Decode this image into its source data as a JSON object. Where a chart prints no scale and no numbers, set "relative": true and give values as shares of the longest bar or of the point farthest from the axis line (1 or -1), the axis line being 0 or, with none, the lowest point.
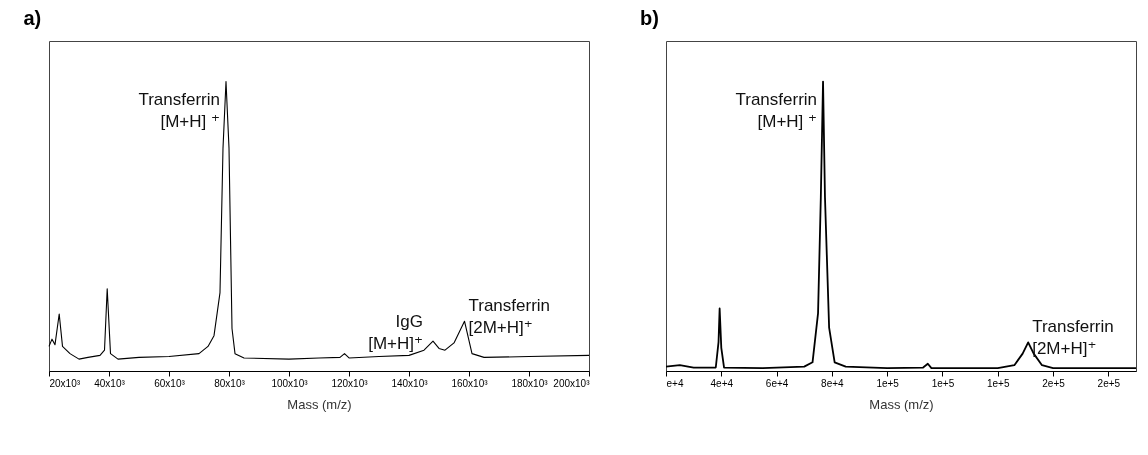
{
  "chart_data": [
    {
      "type": "line",
      "title": "a)",
      "xlabel": "Mass (m/z)",
      "relative": true,
      "color": "#000000",
      "line_style": "solid",
      "grid": false,
      "xlim": [
        20000,
        200000
      ],
      "xticks": [
        {
          "value": 20000,
          "label": "20x10³"
        },
        {
          "value": 40000,
          "label": "40x10³"
        },
        {
          "value": 60000,
          "label": "60x10³"
        },
        {
          "value": 80000,
          "label": "80x10³"
        },
        {
          "value": 100000,
          "label": "100x10³"
        },
        {
          "value": 120000,
          "label": "120x10³"
        },
        {
          "value": 140000,
          "label": "140x10³"
        },
        {
          "value": 160000,
          "label": "160x10³"
        },
        {
          "value": 180000,
          "label": "180x10³"
        },
        {
          "value": 200000,
          "label": "200x10³"
        }
      ],
      "x": [
        20000,
        21000,
        22000,
        23400,
        24500,
        27000,
        30000,
        33000,
        37000,
        38500,
        39400,
        40500,
        43000,
        50000,
        60000,
        70000,
        73000,
        75000,
        77000,
        78000,
        79000,
        80000,
        81000,
        82000,
        85000,
        100000,
        110000,
        117000,
        118500,
        120000,
        130000,
        140000,
        145000,
        148000,
        150000,
        152000,
        155000,
        158500,
        161000,
        165000,
        180000,
        200000
      ],
      "values": [
        0.085,
        0.11,
        0.091,
        0.197,
        0.085,
        0.06,
        0.041,
        0.047,
        0.054,
        0.072,
        0.284,
        0.06,
        0.041,
        0.047,
        0.05,
        0.06,
        0.085,
        0.122,
        0.271,
        0.77,
        1,
        0.77,
        0.147,
        0.06,
        0.045,
        0.041,
        0.045,
        0.047,
        0.06,
        0.045,
        0.05,
        0.054,
        0.072,
        0.103,
        0.078,
        0.072,
        0.097,
        0.172,
        0.06,
        0.047,
        0.05,
        0.054
      ],
      "annotations": [
        {
          "text": "Transferrin\n[M+H] ⁺",
          "x": 79000,
          "y": 1
        },
        {
          "text": "IgG\n[M+H]⁺",
          "x": 148000,
          "y": 0.103
        },
        {
          "text": "Transferrin\n[2M+H]⁺",
          "x": 158500,
          "y": 0.172
        }
      ]
    },
    {
      "type": "line",
      "title": "b)",
      "xlabel": "Mass (m/z)",
      "relative": true,
      "color": "#000000",
      "line_style": "solid",
      "grid": false,
      "xlim": [
        20000,
        190000
      ],
      "xticks": [
        {
          "value": 20000,
          "label": "e+4"
        },
        {
          "value": 40000,
          "label": "4e+4"
        },
        {
          "value": 60000,
          "label": "6e+4"
        },
        {
          "value": 80000,
          "label": "8e+4"
        },
        {
          "value": 100000,
          "label": "1e+5"
        },
        {
          "value": 120000,
          "label": "1e+5"
        },
        {
          "value": 140000,
          "label": "1e+5"
        },
        {
          "value": 160000,
          "label": "2e+5"
        },
        {
          "value": 180000,
          "label": "2e+5"
        }
      ],
      "x": [
        20000,
        25000,
        30000,
        38000,
        39000,
        39400,
        40000,
        41000,
        55000,
        70000,
        73000,
        75000,
        76000,
        76800,
        77500,
        79000,
        81000,
        85000,
        100000,
        113000,
        114700,
        116000,
        140000,
        146000,
        149000,
        151000,
        153000,
        156000,
        160000,
        190000
      ],
      "values": [
        0.015,
        0.02,
        0.012,
        0.012,
        0.1,
        0.216,
        0.08,
        0.012,
        0.01,
        0.015,
        0.03,
        0.2,
        0.6,
        1,
        0.6,
        0.15,
        0.03,
        0.015,
        0.01,
        0.012,
        0.025,
        0.01,
        0.01,
        0.02,
        0.06,
        0.099,
        0.06,
        0.02,
        0.01,
        0.01
      ],
      "annotations": [
        {
          "text": "Transferrin\n[M+H] ⁺",
          "x": 76800,
          "y": 1
        },
        {
          "text": "Transferrin\n[2M+H]⁺",
          "x": 151000,
          "y": 0.099
        }
      ]
    }
  ]
}
